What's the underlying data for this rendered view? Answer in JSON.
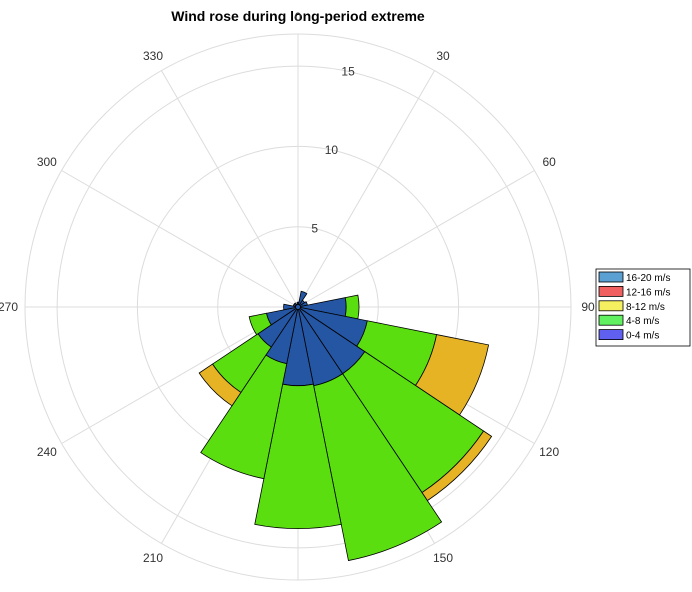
{
  "chart_data": {
    "type": "wind-rose",
    "title": "Wind rose during long-period extreme",
    "angle_direction": "clockwise",
    "zero_location": "top",
    "angle_ticks": [
      0,
      30,
      60,
      90,
      120,
      150,
      180,
      210,
      240,
      270,
      300,
      330
    ],
    "angle_tick_labels": [
      "0",
      "30",
      "60",
      "90",
      "120",
      "150",
      "180",
      "210",
      "240",
      "270",
      "300",
      "330"
    ],
    "radial_ticks": [
      5,
      10,
      15
    ],
    "radial_tick_labels": [
      "5",
      "10",
      "15"
    ],
    "rlim": [
      0,
      17
    ],
    "sector_width_deg": 22.5,
    "directions": [
      0,
      22.5,
      45,
      67.5,
      90,
      112.5,
      135,
      157.5,
      180,
      202.5,
      225,
      247.5,
      270,
      292.5,
      315,
      337.5
    ],
    "series": [
      {
        "name": "0-4 m/s",
        "color": "#2456a4",
        "values": [
          0.3,
          1.0,
          0.5,
          0.6,
          3.0,
          4.4,
          5.0,
          5.0,
          4.9,
          3.6,
          3.0,
          2.0,
          0.9,
          0.3,
          0.3,
          0.2
        ]
      },
      {
        "name": "4-8 m/s",
        "color": "#5ade10",
        "values": [
          0,
          0,
          0,
          0,
          0.8,
          4.4,
          8.9,
          11.1,
          8.9,
          7.3,
          3.4,
          1.1,
          0,
          0,
          0,
          0
        ]
      },
      {
        "name": "8-12 m/s",
        "color": "#e6b325",
        "values": [
          0,
          0,
          0,
          0,
          0,
          3.3,
          0.6,
          0,
          0,
          0,
          1.0,
          0,
          0,
          0,
          0,
          0
        ]
      },
      {
        "name": "12-16 m/s",
        "color": "#f06060",
        "values": [
          0,
          0,
          0,
          0,
          0,
          0,
          0,
          0,
          0,
          0,
          0,
          0,
          0,
          0,
          0,
          0
        ]
      },
      {
        "name": "16-20 m/s",
        "color": "#5aa0d2",
        "values": [
          0,
          0,
          0,
          0,
          0,
          0,
          0,
          0,
          0,
          0,
          0,
          0,
          0,
          0,
          0,
          0
        ]
      }
    ],
    "legend": {
      "placement": "right",
      "entries": [
        {
          "label": "16-20 m/s",
          "color": "#5aa0d2"
        },
        {
          "label": "12-16 m/s",
          "color": "#f06060"
        },
        {
          "label": "8-12 m/s",
          "color": "#f5f060"
        },
        {
          "label": "4-8 m/s",
          "color": "#60f060"
        },
        {
          "label": "0-4 m/s",
          "color": "#6060f0"
        }
      ]
    },
    "grid": true
  }
}
